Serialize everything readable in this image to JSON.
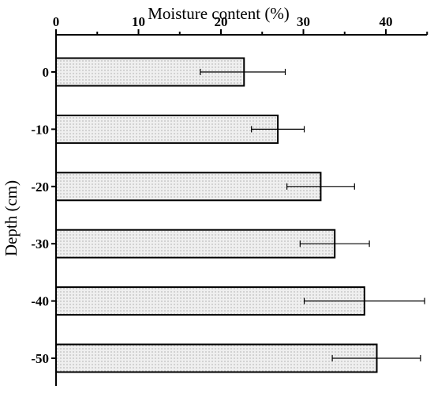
{
  "chart_data": {
    "type": "bar",
    "orientation": "horizontal",
    "xlabel": "Moisture content (%)",
    "ylabel": "Depth (cm)",
    "xlim": [
      0,
      45
    ],
    "x_ticks": [
      "0",
      "10",
      "20",
      "30",
      "40"
    ],
    "x_tick_values": [
      0,
      10,
      20,
      30,
      40
    ],
    "x_axis_position": "top",
    "grid": false,
    "legend": "none",
    "categories": [
      "0",
      "-10",
      "-20",
      "-30",
      "-40",
      "-50"
    ],
    "values": [
      22.8,
      26.9,
      32.1,
      33.8,
      37.4,
      38.9
    ],
    "error_low": [
      17.5,
      23.7,
      28.0,
      29.6,
      30.1,
      33.5
    ],
    "error_high": [
      27.8,
      30.1,
      36.2,
      38.0,
      44.7,
      44.2
    ],
    "colors": {
      "bar_fill": "#efefef",
      "bar_dots": "#8a8a8a",
      "bar_edge": "#000000",
      "axis": "#000000"
    }
  }
}
